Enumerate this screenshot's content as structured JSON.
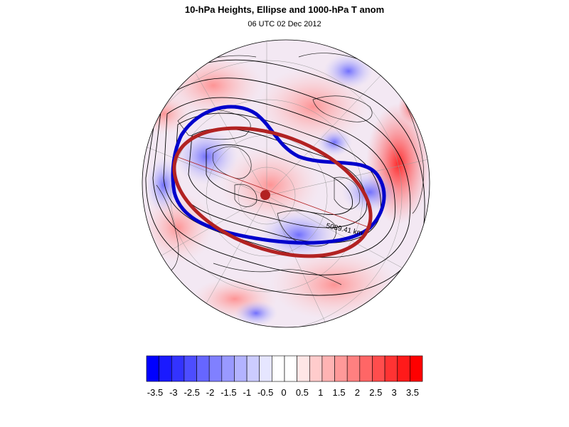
{
  "title": "10-hPa Heights, Ellipse and 1000-hPa T anom",
  "subtitle": "06 UTC 02 Dec 2012",
  "map": {
    "projection": "north-polar-stereographic",
    "ellipse_distance_label": "5089.41 km",
    "colors": {
      "ellipse": "#b22222",
      "vortex_edge": "#0000cc",
      "contours": "#000000",
      "warm": "#ff0000",
      "cold": "#0000ff"
    }
  },
  "colorbar": {
    "tick_labels": [
      "-3.5",
      "-3",
      "-2.5",
      "-2",
      "-1.5",
      "-1",
      "-0.5",
      "0",
      "0.5",
      "1",
      "1.5",
      "2",
      "2.5",
      "3",
      "3.5"
    ],
    "colors": [
      "#0000ff",
      "#1a1aff",
      "#3333ff",
      "#4d4dff",
      "#6666ff",
      "#8080ff",
      "#9999ff",
      "#b3b3ff",
      "#ccccff",
      "#e6e6ff",
      "#ffffff",
      "#ffffff",
      "#ffe6e6",
      "#ffcccc",
      "#ffb3b3",
      "#ff9999",
      "#ff8080",
      "#ff6666",
      "#ff4d4d",
      "#ff3333",
      "#ff1a1a",
      "#ff0000"
    ]
  }
}
